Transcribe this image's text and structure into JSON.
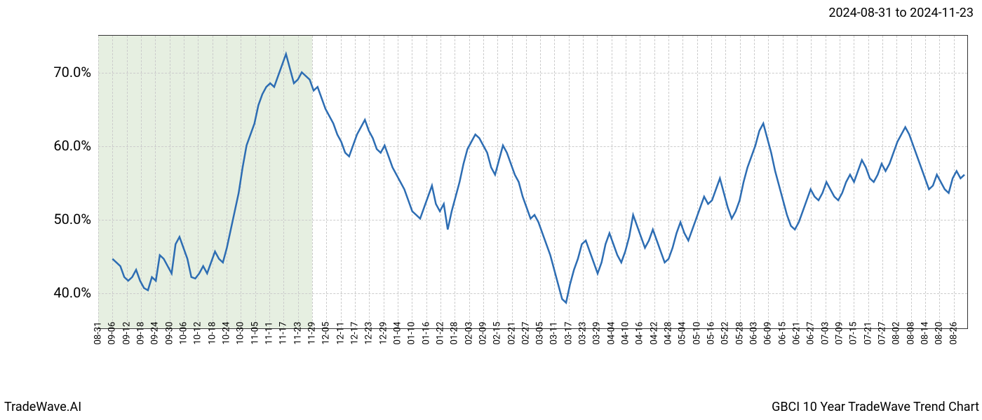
{
  "header": {
    "date_range": "2024-08-31 to 2024-11-23"
  },
  "footer": {
    "left": "TradeWave.AI",
    "right": "GBCI 10 Year TradeWave Trend Chart"
  },
  "chart": {
    "type": "line",
    "background_color": "#ffffff",
    "grid_color": "#cccccc",
    "border_color": "#333333",
    "line_color": "#2d6db3",
    "line_width": 2.5,
    "shaded_region": {
      "color": "#dbe8d4",
      "opacity": 0.7,
      "x_start_index": 0,
      "x_end_index": 15
    },
    "y_axis": {
      "min": 35,
      "max": 75,
      "ticks": [
        40,
        50,
        60,
        70
      ],
      "tick_labels": [
        "40.0%",
        "50.0%",
        "60.0%",
        "70.0%"
      ],
      "label_fontsize": 20
    },
    "x_axis": {
      "labels": [
        "08-31",
        "09-06",
        "09-12",
        "09-18",
        "09-24",
        "09-30",
        "10-06",
        "10-12",
        "10-18",
        "10-24",
        "10-30",
        "11-05",
        "11-11",
        "11-17",
        "11-23",
        "11-29",
        "12-05",
        "12-11",
        "12-17",
        "12-23",
        "12-29",
        "01-04",
        "01-10",
        "01-16",
        "01-22",
        "01-28",
        "02-03",
        "02-09",
        "02-15",
        "02-21",
        "02-27",
        "03-05",
        "03-11",
        "03-17",
        "03-23",
        "03-29",
        "04-04",
        "04-10",
        "04-16",
        "04-22",
        "04-28",
        "05-04",
        "05-10",
        "05-16",
        "05-22",
        "05-28",
        "06-03",
        "06-09",
        "06-15",
        "06-21",
        "06-27",
        "07-03",
        "07-09",
        "07-15",
        "07-21",
        "07-27",
        "08-02",
        "08-08",
        "08-14",
        "08-20",
        "08-26"
      ],
      "label_fontsize": 13,
      "rotation": -90
    },
    "series": {
      "values": [
        44.5,
        44.0,
        43.5,
        42.0,
        41.5,
        42.0,
        43.0,
        41.5,
        40.5,
        40.2,
        42.0,
        41.5,
        45.0,
        44.5,
        43.5,
        42.5,
        46.5,
        47.5,
        46.0,
        44.5,
        42.0,
        41.8,
        42.5,
        43.5,
        42.5,
        44.0,
        45.5,
        44.5,
        44.0,
        46.0,
        48.5,
        51.0,
        53.5,
        57.0,
        60.0,
        61.5,
        63.0,
        65.5,
        67.0,
        68.0,
        68.5,
        68.0,
        69.5,
        71.0,
        72.5,
        70.5,
        68.5,
        69.0,
        70.0,
        69.5,
        69.0,
        67.5,
        68.0,
        66.5,
        65.0,
        64.0,
        63.0,
        61.5,
        60.5,
        59.0,
        58.5,
        60.0,
        61.5,
        62.5,
        63.5,
        62.0,
        61.0,
        59.5,
        59.0,
        60.0,
        58.5,
        57.0,
        56.0,
        55.0,
        54.0,
        52.5,
        51.0,
        50.5,
        50.0,
        51.5,
        53.0,
        54.5,
        52.0,
        51.0,
        52.0,
        48.5,
        51.0,
        53.0,
        55.0,
        57.5,
        59.5,
        60.5,
        61.5,
        61.0,
        60.0,
        59.0,
        57.0,
        56.0,
        58.0,
        60.0,
        59.0,
        57.5,
        56.0,
        55.0,
        53.0,
        51.5,
        50.0,
        50.5,
        49.5,
        48.0,
        46.5,
        45.0,
        43.0,
        41.0,
        39.0,
        38.5,
        41.0,
        43.0,
        44.5,
        46.5,
        47.0,
        45.5,
        44.0,
        42.5,
        44.0,
        46.5,
        48.0,
        46.5,
        45.0,
        44.0,
        45.5,
        47.5,
        50.5,
        49.0,
        47.5,
        46.0,
        47.0,
        48.5,
        47.0,
        45.5,
        44.0,
        44.5,
        46.0,
        48.0,
        49.5,
        48.0,
        47.0,
        48.5,
        50.0,
        51.5,
        53.0,
        52.0,
        52.5,
        54.0,
        55.5,
        53.5,
        51.5,
        50.0,
        51.0,
        52.5,
        55.0,
        57.0,
        58.5,
        60.0,
        62.0,
        63.0,
        61.0,
        59.0,
        56.5,
        54.5,
        52.5,
        50.5,
        49.0,
        48.5,
        49.5,
        51.0,
        52.5,
        54.0,
        53.0,
        52.5,
        53.5,
        55.0,
        54.0,
        53.0,
        52.5,
        53.5,
        55.0,
        56.0,
        55.0,
        56.5,
        58.0,
        57.0,
        55.5,
        55.0,
        56.0,
        57.5,
        56.5,
        57.5,
        59.0,
        60.5,
        61.5,
        62.5,
        61.5,
        60.0,
        58.5,
        57.0,
        55.5,
        54.0,
        54.5,
        56.0,
        55.0,
        54.0,
        53.5,
        55.5,
        56.5,
        55.5,
        56.0
      ]
    }
  }
}
